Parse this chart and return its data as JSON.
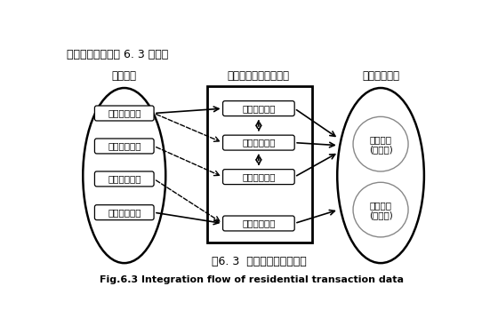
{
  "title_cn": "图6. 3  住宅数据的整合流程",
  "title_en": "Fig.6.3 Integration flow of residential transaction data",
  "header_text": "数据整理流程如图 6. 3 所示。",
  "col1_title": "原始资料",
  "col2_title": "数据选择、修正与编码",
  "col3_title": "住宅数据整合",
  "left_boxes": [
    "住宅评估报告",
    "住宅排牌资料",
    "住宅调查资料",
    "津市电子地图"
  ],
  "mid_boxes": [
    "住宅评估价格",
    "住宅成交价格",
    "住宅挂牌价格",
    "住宅自然属性"
  ],
  "right_circles": [
    [
      "住宅价格",
      "(应变量)"
    ],
    [
      "自然属性",
      "(自变量)"
    ]
  ],
  "bg_color": "#ffffff",
  "box_color": "#ffffff",
  "border_color": "#000000",
  "arrow_color": "#000000"
}
